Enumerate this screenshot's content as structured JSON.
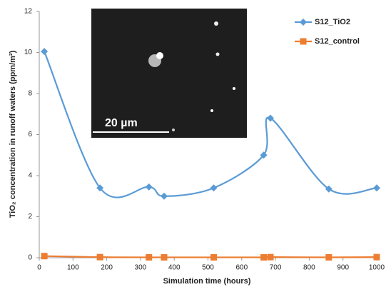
{
  "chart_data": {
    "type": "line",
    "x_label": "Simulation time (hours)",
    "y_label": "TiO₂ concentration in runoff waters (ppm/m²)",
    "annotations": [
      "20 µm"
    ],
    "x": [
      15,
      180,
      325,
      370,
      517,
      665,
      685,
      858,
      1000
    ],
    "series": [
      {
        "name": "S12_TiO2",
        "color": "#5b9bd5",
        "marker": "diamond",
        "values": [
          10.05,
          3.4,
          3.45,
          3.0,
          3.4,
          5.0,
          6.8,
          3.35,
          3.4
        ]
      },
      {
        "name": "S12_control",
        "color": "#ed7d31",
        "marker": "square",
        "values": [
          0.08,
          0.03,
          0.02,
          0.02,
          0.02,
          0.02,
          0.03,
          0.02,
          0.03
        ]
      }
    ],
    "xlim": [
      0,
      1000
    ],
    "xticks": [
      0,
      100,
      200,
      300,
      400,
      500,
      600,
      700,
      800,
      900,
      1000
    ],
    "ylim": [
      0,
      12
    ],
    "yticks": [
      0,
      2,
      4,
      6,
      8,
      10,
      12
    ],
    "grid": false,
    "smooth": true,
    "legend": "right"
  }
}
